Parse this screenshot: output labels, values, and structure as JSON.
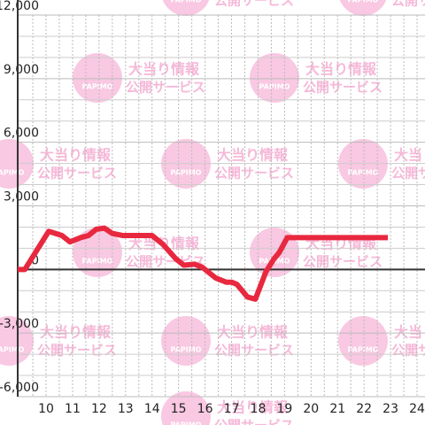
{
  "chart_data": {
    "type": "line",
    "x": [
      8.93,
      9.2,
      10.1,
      10.6,
      10.9,
      11.3,
      11.6,
      11.9,
      12.2,
      12.5,
      12.9,
      14.0,
      14.4,
      14.9,
      15.2,
      15.6,
      15.9,
      16.4,
      16.8,
      17.0,
      17.2,
      17.6,
      17.9,
      18.3,
      18.6,
      18.8,
      19.1,
      22.9
    ],
    "series": [
      {
        "color": "#e8283f",
        "values": [
          0,
          0,
          1800,
          1600,
          1300,
          1500,
          1600,
          1900,
          1950,
          1700,
          1600,
          1600,
          1200,
          500,
          200,
          250,
          100,
          -400,
          -600,
          -600,
          -700,
          -1300,
          -1400,
          -100,
          500,
          800,
          1500,
          1500
        ]
      }
    ],
    "xlim": [
      8.93,
      24.3
    ],
    "xticks": [
      10,
      11,
      12,
      13,
      14,
      15,
      16,
      17,
      18,
      19,
      20,
      21,
      22,
      23,
      24
    ],
    "x_minor_ticks": [
      9.5,
      10.5,
      11.5,
      12.5,
      13.5,
      14.5,
      15.5,
      16.5,
      17.5,
      18.5,
      19.5,
      20.5,
      21.5,
      22.5,
      23.5
    ],
    "ylim": [
      -6000,
      12000
    ],
    "yticks": [
      {
        "value": -6000,
        "label": "-6,000"
      },
      {
        "value": -3000,
        "label": "-3,000"
      },
      0,
      {
        "value": 3000,
        "label": "3,000"
      },
      {
        "value": 6000,
        "label": "6,000"
      },
      {
        "value": 9000,
        "label": "9,000"
      },
      {
        "value": 12000,
        "label": "12,000"
      }
    ],
    "y_minor_ticks": [
      -5000,
      -4000,
      -2000,
      -1000,
      1000,
      2000,
      4000,
      5000,
      7000,
      8000,
      10000,
      11000
    ],
    "grid": true,
    "watermark": {
      "line1": "大当り情報",
      "line2": "公開サービス",
      "logo": "PAPIMO"
    }
  }
}
